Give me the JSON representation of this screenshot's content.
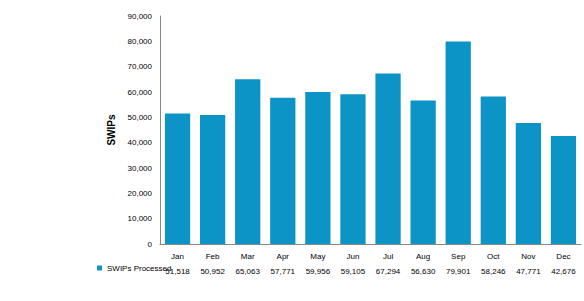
{
  "chart_data": {
    "type": "bar",
    "y_label": "SWIPs",
    "categories": [
      "Jan",
      "Feb",
      "Mar",
      "Apr",
      "May",
      "Jun",
      "Jul",
      "Aug",
      "Sep",
      "Oct",
      "Nov",
      "Dec"
    ],
    "series": [
      {
        "name": "SWIPs Processed",
        "color": "#0b94c5",
        "values": [
          51518,
          50952,
          65063,
          57771,
          59956,
          59105,
          67294,
          56630,
          79901,
          58246,
          47771,
          42676
        ],
        "value_labels": [
          "51,518",
          "50,952",
          "65,063",
          "57,771",
          "59,956",
          "59,105",
          "67,294",
          "56,630",
          "79,901",
          "58,246",
          "47,771",
          "42,676"
        ]
      }
    ],
    "ylim": [
      0,
      90000
    ],
    "yticks": [
      0,
      {
        "value": 10000,
        "label": "10,000"
      },
      {
        "value": 20000,
        "label": "20,000"
      },
      {
        "value": 30000,
        "label": "30,000"
      },
      {
        "value": 40000,
        "label": "40,000"
      },
      {
        "value": 50000,
        "label": "50,000"
      },
      {
        "value": 60000,
        "label": "60,000"
      },
      {
        "value": 70000,
        "label": "70,000"
      },
      {
        "value": 80000,
        "label": "80,000"
      },
      {
        "value": 90000,
        "label": "90,000"
      }
    ],
    "grid": false,
    "legend": "bottom-left"
  }
}
